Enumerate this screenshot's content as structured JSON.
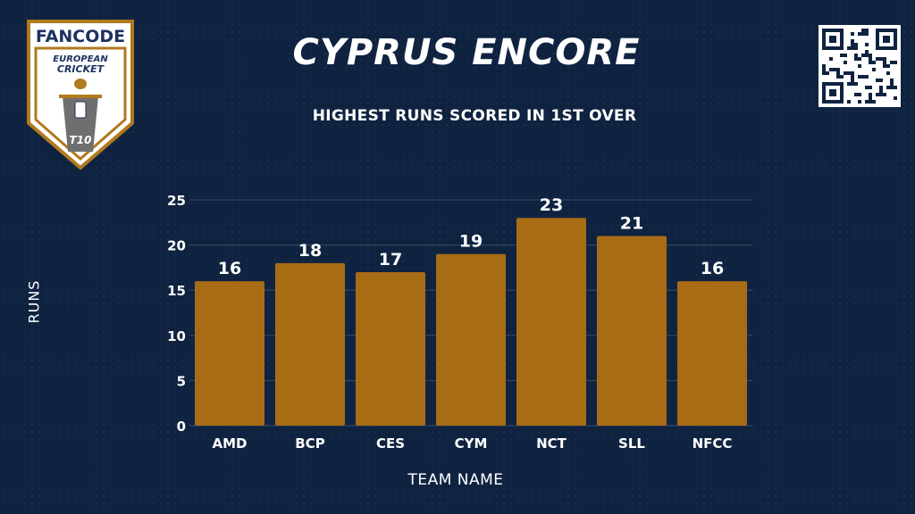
{
  "header": {
    "title": "CYPRUS ENCORE",
    "subtitle": "HIGHEST RUNS SCORED IN 1ST OVER"
  },
  "logo": {
    "brand_text": "FANCODE",
    "line1": "EUROPEAN",
    "line2": "CRICKET",
    "badge": "T10",
    "colors": {
      "gold": "#b07a1e",
      "navy": "#1d3260",
      "orange": "#e8582a"
    }
  },
  "qr": {
    "icon": "qr-code-icon"
  },
  "chart_data": {
    "type": "bar",
    "categories": [
      "AMD",
      "BCP",
      "CES",
      "CYM",
      "NCT",
      "SLL",
      "NFCC"
    ],
    "values": [
      16,
      18,
      17,
      19,
      23,
      21,
      16
    ],
    "title": "",
    "xlabel": "TEAM NAME",
    "ylabel": "RUNS",
    "ylim": [
      0,
      25
    ],
    "yticks": [
      0,
      5,
      10,
      15,
      20,
      25
    ],
    "grid": true,
    "bar_color": "#a86c14",
    "data_labels": true
  }
}
